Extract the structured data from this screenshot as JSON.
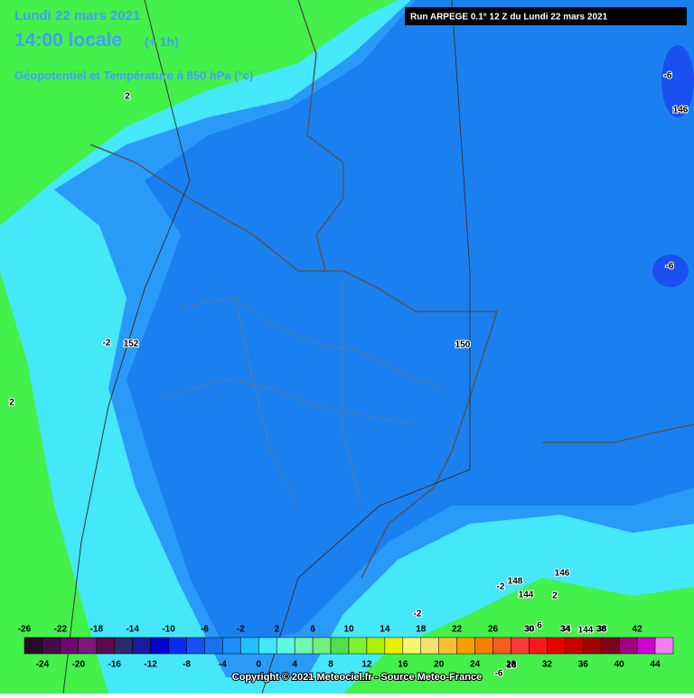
{
  "header": {
    "date": "Lundi 22 mars 2021",
    "time": "14:00 locale",
    "offset": "(+ 1h)",
    "field": "Géopotentiel et Température à 850 hPa (°c)",
    "run": "Run ARPEGE 0.1° 12 Z du Lundi 22 mars 2021"
  },
  "map_labels": [
    "2",
    "-6",
    "146",
    "-6",
    "-2",
    "152",
    "150",
    "2",
    "-2",
    "148",
    "146",
    "144",
    "2",
    "-2",
    "30",
    "6",
    "34",
    "144",
    "38",
    "-6",
    "28"
  ],
  "scale": {
    "top_labels": [
      -26,
      -22,
      -18,
      -14,
      -10,
      -6,
      -2,
      2,
      6,
      10,
      14,
      18,
      22,
      26,
      30,
      34,
      38,
      42
    ],
    "bottom_labels": [
      -24,
      -20,
      -16,
      -12,
      -8,
      -4,
      0,
      4,
      8,
      12,
      16,
      20,
      24,
      28,
      32,
      36,
      40,
      44
    ],
    "colors": [
      "#2a0a2a",
      "#4a0a4a",
      "#6a0a6a",
      "#7a1a7a",
      "#5a0a4a",
      "#2a2a6a",
      "#1a1aa0",
      "#0000d0",
      "#0a2af0",
      "#1a50f0",
      "#1a70f0",
      "#1a90f8",
      "#20c0f8",
      "#40e8f8",
      "#60f8e0",
      "#70f8b0",
      "#70f080",
      "#50e050",
      "#80f030",
      "#b0f000",
      "#e8f000",
      "#f8f870",
      "#f8e070",
      "#f8c030",
      "#f8a000",
      "#f88000",
      "#f85a20",
      "#f83a3a",
      "#f81a1a",
      "#e80000",
      "#c80000",
      "#a00000",
      "#800020",
      "#a00080",
      "#d000d0",
      "#f080f0"
    ]
  },
  "footer": {
    "copyright": "Copyright © 2021 Meteociel.fr - Source Meteo-France"
  }
}
